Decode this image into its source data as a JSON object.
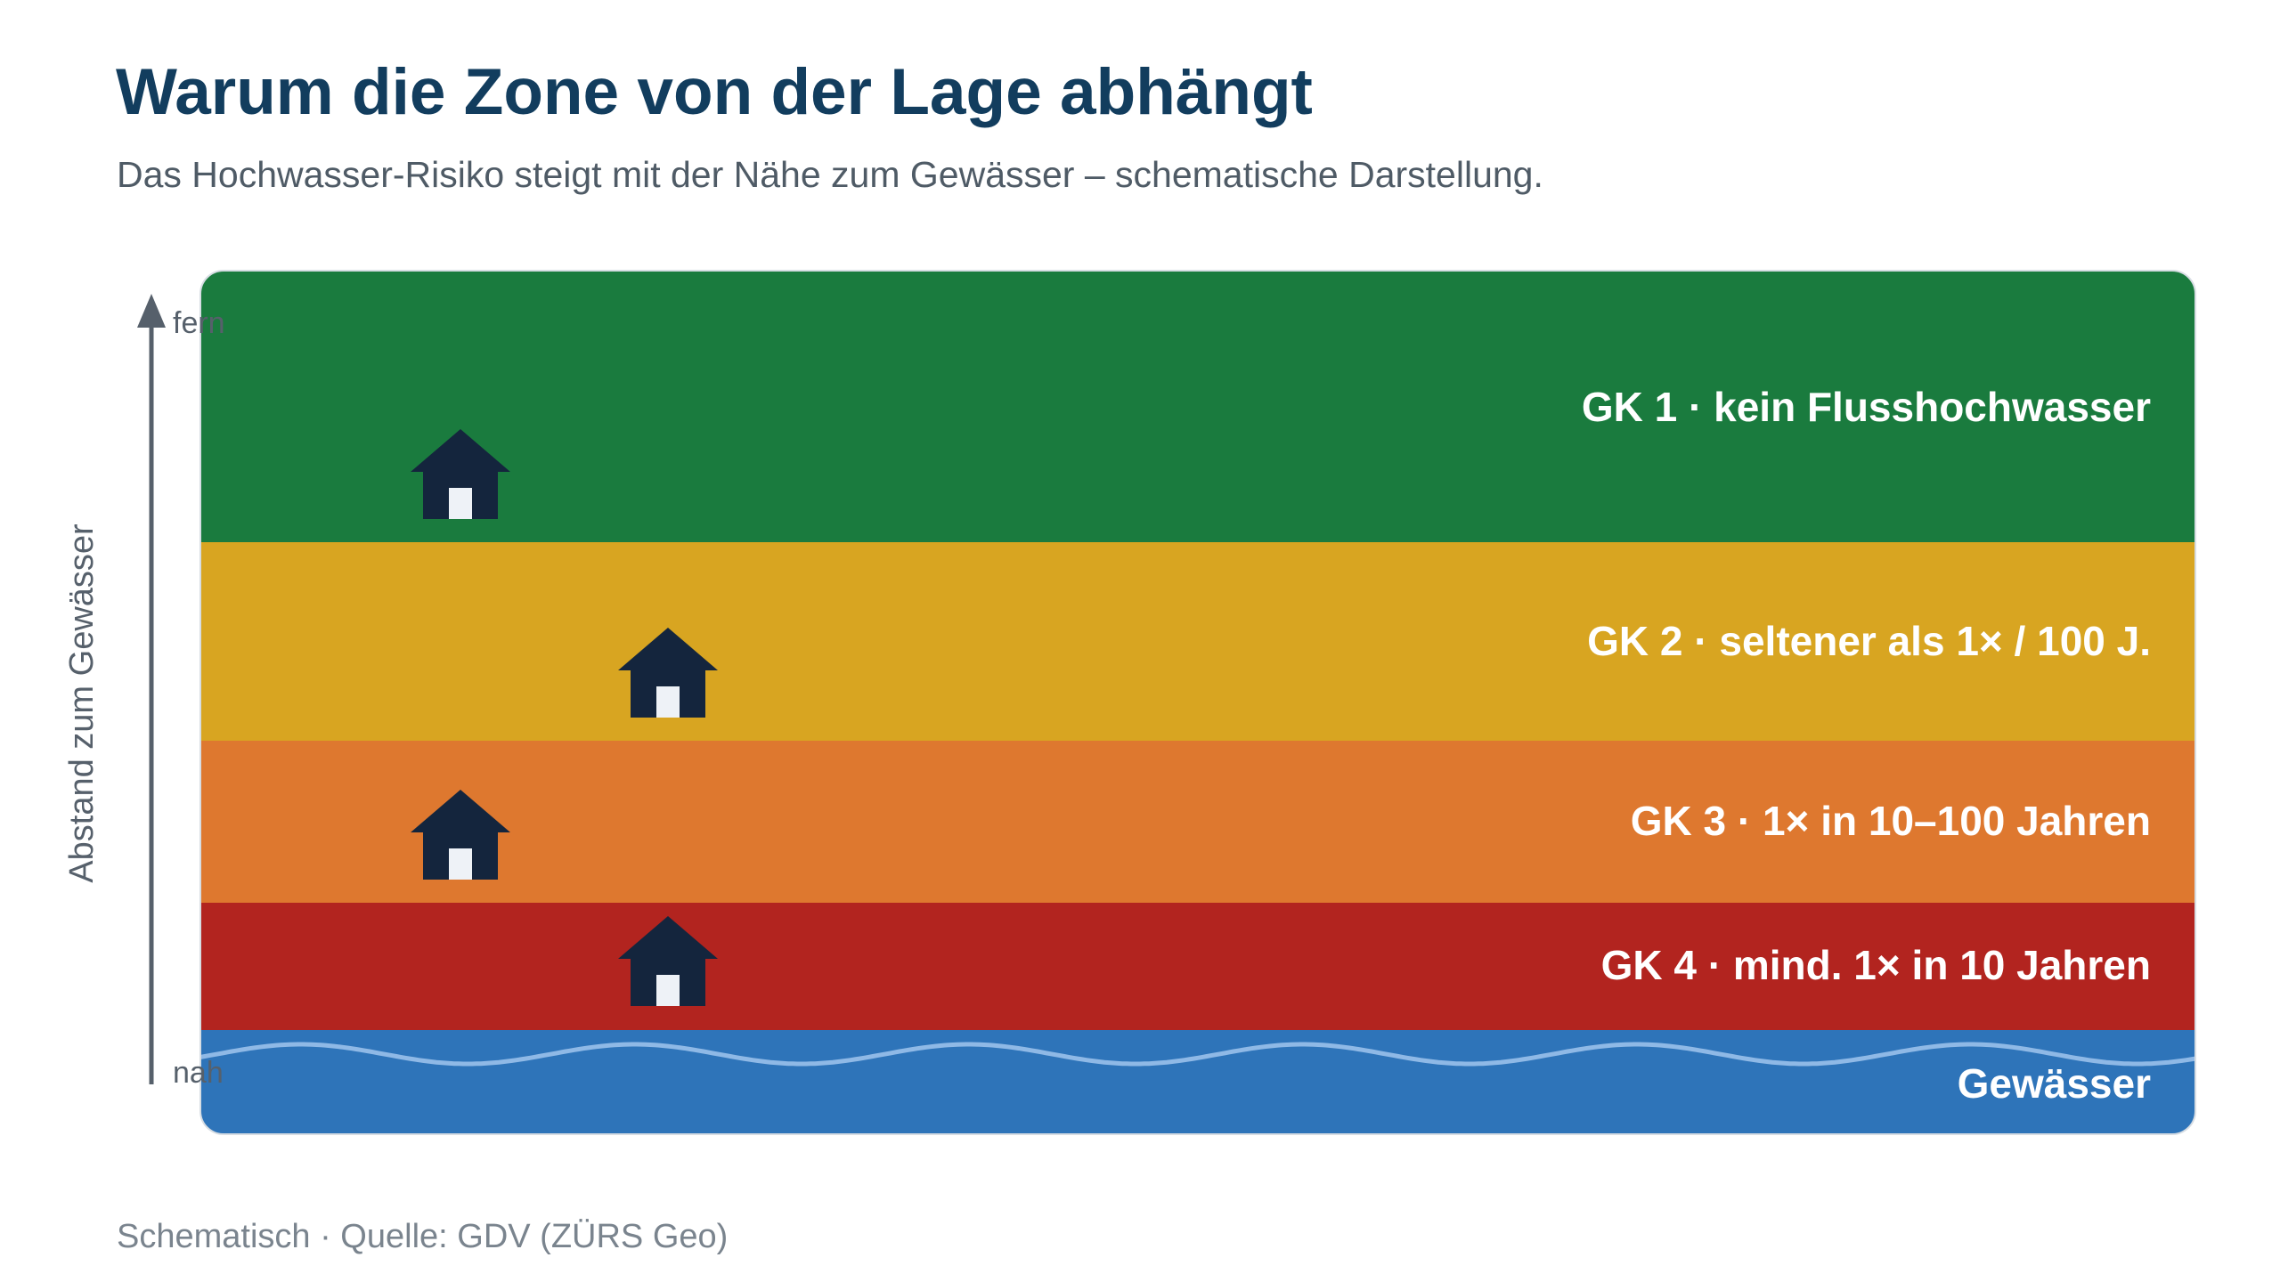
{
  "header": {
    "title": "Warum die Zone von der Lage abhängt",
    "subtitle": "Das Hochwasser-Risiko steigt mit der Nähe zum Gewässer – schematische Darstellung."
  },
  "axis": {
    "label": "Abstand zum Gewässer",
    "top_label": "fern",
    "bottom_label": "nah",
    "color": "#56606b"
  },
  "zones": [
    {
      "label": "GK 1 · kein Flusshochwasser",
      "color": "#1a7b3e"
    },
    {
      "label": "GK 2 · seltener als 1× / 100 J.",
      "color": "#d8a521"
    },
    {
      "label": "GK 3 · 1× in 10–100 Jahren",
      "color": "#de782f"
    },
    {
      "label": "GK 4 · mind. 1× in 10 Jahren",
      "color": "#b2241f"
    }
  ],
  "water": {
    "label": "Gewässer",
    "color": "#2e74b9",
    "wave_color": "#8fb9e6"
  },
  "house": {
    "color": "#14253d",
    "door_color": "#eef2f7"
  },
  "footer": {
    "source": "Schematisch · Quelle: GDV (ZÜRS Geo)"
  }
}
